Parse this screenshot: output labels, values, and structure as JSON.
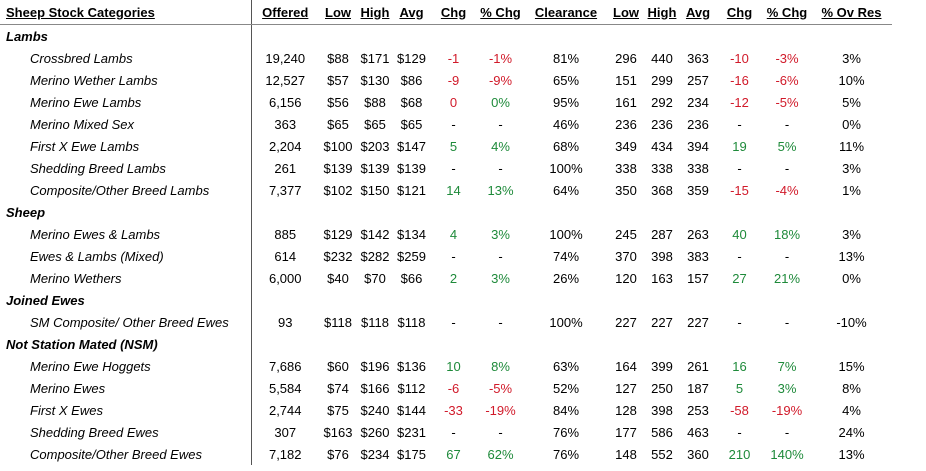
{
  "headers": [
    "Sheep Stock Categories",
    "Offered",
    "Low",
    "High",
    "Avg",
    "Chg",
    "% Chg",
    "Clearance",
    "Low",
    "High",
    "Avg",
    "Chg",
    "% Chg",
    "% Ov Res"
  ],
  "sections": [
    {
      "title": "Lambs",
      "rows": [
        {
          "name": "Crossbred Lambs",
          "values": [
            "19,240",
            "$88",
            "$171",
            "$129",
            "-1",
            "-1%",
            "81%",
            "296",
            "440",
            "363",
            "-10",
            "-3%",
            "3%"
          ]
        },
        {
          "name": "Merino Wether Lambs",
          "values": [
            "12,527",
            "$57",
            "$130",
            "$86",
            "-9",
            "-9%",
            "65%",
            "151",
            "299",
            "257",
            "-16",
            "-6%",
            "10%"
          ]
        },
        {
          "name": "Merino Ewe Lambs",
          "values": [
            "6,156",
            "$56",
            "$88",
            "$68",
            "0",
            "0%",
            "95%",
            "161",
            "292",
            "234",
            "-12",
            "-5%",
            "5%"
          ]
        },
        {
          "name": "Merino Mixed Sex",
          "values": [
            "363",
            "$65",
            "$65",
            "$65",
            "-",
            "-",
            "46%",
            "236",
            "236",
            "236",
            "-",
            "-",
            "0%"
          ]
        },
        {
          "name": "First X Ewe Lambs",
          "values": [
            "2,204",
            "$100",
            "$203",
            "$147",
            "5",
            "4%",
            "68%",
            "349",
            "434",
            "394",
            "19",
            "5%",
            "11%"
          ]
        },
        {
          "name": "Shedding Breed Lambs",
          "values": [
            "261",
            "$139",
            "$139",
            "$139",
            "-",
            "-",
            "100%",
            "338",
            "338",
            "338",
            "-",
            "-",
            "3%"
          ]
        },
        {
          "name": "Composite/Other Breed Lambs",
          "values": [
            "7,377",
            "$102",
            "$150",
            "$121",
            "14",
            "13%",
            "64%",
            "350",
            "368",
            "359",
            "-15",
            "-4%",
            "1%"
          ]
        }
      ]
    },
    {
      "title": "Sheep",
      "rows": [
        {
          "name": "Merino Ewes & Lambs",
          "values": [
            "885",
            "$129",
            "$142",
            "$134",
            "4",
            "3%",
            "100%",
            "245",
            "287",
            "263",
            "40",
            "18%",
            "3%"
          ]
        },
        {
          "name": "Ewes & Lambs (Mixed)",
          "values": [
            "614",
            "$232",
            "$282",
            "$259",
            "-",
            "-",
            "74%",
            "370",
            "398",
            "383",
            "-",
            "-",
            "13%"
          ]
        },
        {
          "name": "Merino Wethers",
          "values": [
            "6,000",
            "$40",
            "$70",
            "$66",
            "2",
            "3%",
            "26%",
            "120",
            "163",
            "157",
            "27",
            "21%",
            "0%"
          ]
        }
      ]
    },
    {
      "title": "Joined Ewes",
      "rows": [
        {
          "name": "SM Composite/ Other Breed Ewes",
          "values": [
            "93",
            "$118",
            "$118",
            "$118",
            "-",
            "-",
            "100%",
            "227",
            "227",
            "227",
            "-",
            "-",
            "-10%"
          ]
        }
      ]
    },
    {
      "title": "Not Station Mated (NSM)",
      "rows": [
        {
          "name": "Merino Ewe Hoggets",
          "values": [
            "7,686",
            "$60",
            "$196",
            "$136",
            "10",
            "8%",
            "63%",
            "164",
            "399",
            "261",
            "16",
            "7%",
            "15%"
          ]
        },
        {
          "name": "Merino Ewes",
          "values": [
            "5,584",
            "$74",
            "$166",
            "$112",
            "-6",
            "-5%",
            "52%",
            "127",
            "250",
            "187",
            "5",
            "3%",
            "8%"
          ]
        },
        {
          "name": "First X Ewes",
          "values": [
            "2,744",
            "$75",
            "$240",
            "$144",
            "-33",
            "-19%",
            "84%",
            "128",
            "398",
            "253",
            "-58",
            "-19%",
            "4%"
          ]
        },
        {
          "name": "Shedding Breed Ewes",
          "values": [
            "307",
            "$163",
            "$260",
            "$231",
            "-",
            "-",
            "76%",
            "177",
            "586",
            "463",
            "-",
            "-",
            "24%"
          ]
        },
        {
          "name": "Composite/Other Breed Ewes",
          "values": [
            "7,182",
            "$76",
            "$234",
            "$175",
            "67",
            "62%",
            "76%",
            "148",
            "552",
            "360",
            "210",
            "140%",
            "13%"
          ]
        }
      ]
    }
  ],
  "colors": {
    "positive": "#1e8a3a",
    "negative": "#d11a2a"
  }
}
